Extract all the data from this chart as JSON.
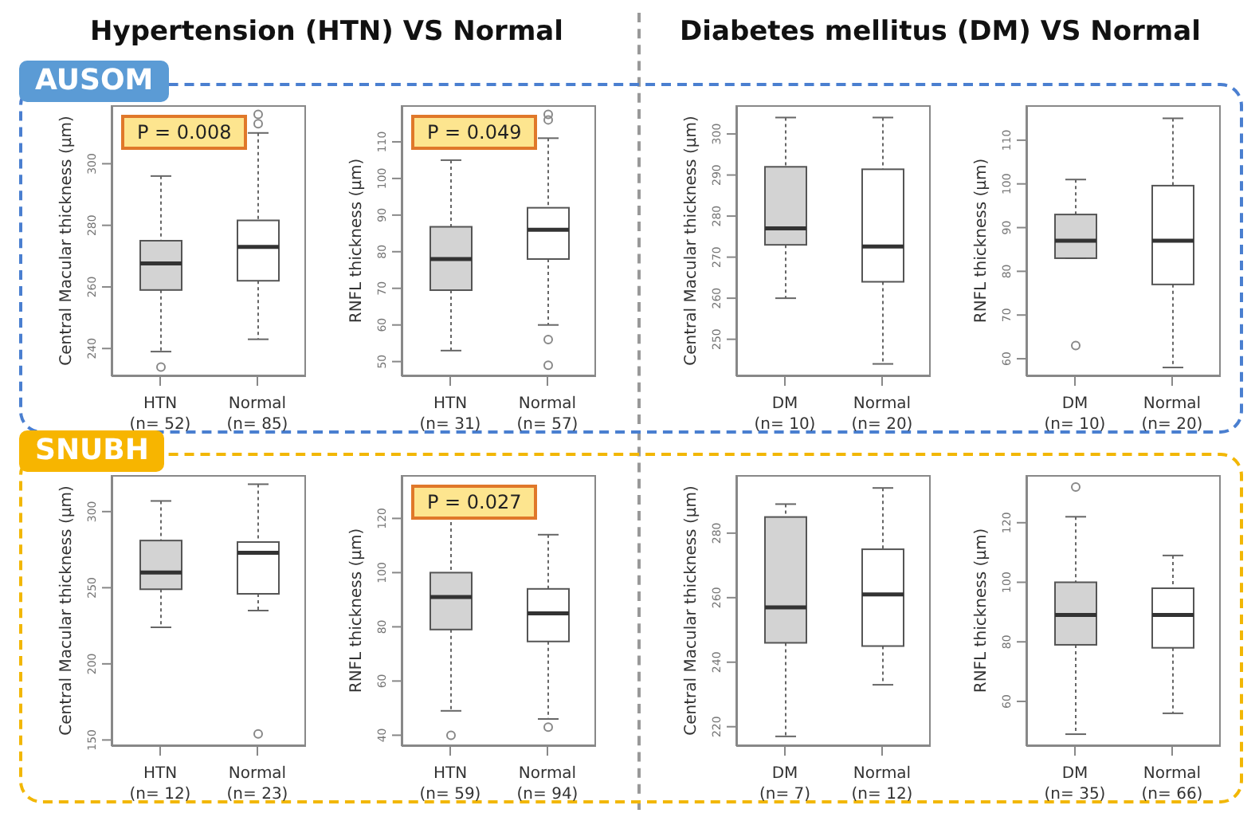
{
  "chart_data": [
    {
      "type": "box",
      "title": "Hypertension (HTN) VS Normal",
      "subtitle": "AUSOM",
      "ylabel": "Central Macular thickness (μm)",
      "categories": [
        "HTN\n(n= 52)",
        "Normal\n(n= 85)"
      ],
      "colors": [
        "#d3d3d3",
        "#ffffff"
      ],
      "ylim": [
        231,
        319
      ],
      "yticks": [
        240,
        260,
        280,
        300
      ],
      "annotations": [
        "P = 0.008"
      ],
      "boxes": [
        {
          "low": 239,
          "q1": 259,
          "median": 267.6,
          "q3": 275,
          "high": 296,
          "outliers": [
            234
          ]
        },
        {
          "low": 243,
          "q1": 262,
          "median": 273,
          "q3": 281.6,
          "high": 310,
          "outliers": [
            313,
            316
          ]
        }
      ]
    },
    {
      "type": "box",
      "ylabel": "RNFL thickness (μm)",
      "categories": [
        "HTN\n(n= 31)",
        "Normal\n(n= 57)"
      ],
      "colors": [
        "#d3d3d3",
        "#ffffff"
      ],
      "ylim": [
        46,
        120
      ],
      "yticks": [
        50,
        60,
        70,
        80,
        90,
        100,
        110
      ],
      "annotations": [
        "P = 0.049"
      ],
      "boxes": [
        {
          "low": 53,
          "q1": 69.5,
          "median": 78,
          "q3": 86.8,
          "high": 105
        },
        {
          "low": 60,
          "q1": 78,
          "median": 86,
          "q3": 92,
          "high": 111,
          "outliers": [
            116,
            117.5,
            56,
            49
          ]
        }
      ]
    },
    {
      "type": "box",
      "title": "Diabetes mellitus (DM) VS Normal",
      "ylabel": "Central Macular thickness (μm)",
      "categories": [
        "DM\n(n= 10)",
        "Normal\n(n= 20)"
      ],
      "colors": [
        "#d3d3d3",
        "#ffffff"
      ],
      "ylim": [
        241,
        307
      ],
      "yticks": [
        250,
        260,
        270,
        280,
        290,
        300
      ],
      "boxes": [
        {
          "low": 260,
          "q1": 273,
          "median": 277,
          "q3": 292,
          "high": 304
        },
        {
          "low": 244,
          "q1": 264,
          "median": 272.6,
          "q3": 291.4,
          "high": 304
        }
      ]
    },
    {
      "type": "box",
      "ylabel": "RNFL thickness (μm)",
      "categories": [
        "DM\n(n= 10)",
        "Normal\n(n= 20)"
      ],
      "colors": [
        "#d3d3d3",
        "#ffffff"
      ],
      "ylim": [
        56,
        118
      ],
      "yticks": [
        60,
        70,
        80,
        90,
        100,
        110
      ],
      "boxes": [
        {
          "low": 83,
          "q1": 83,
          "median": 87,
          "q3": 93,
          "high": 101,
          "outliers": [
            63
          ]
        },
        {
          "low": 58,
          "q1": 77,
          "median": 87,
          "q3": 99.6,
          "high": 115
        }
      ]
    },
    {
      "type": "box",
      "subtitle": "SNUBH",
      "ylabel": "Central Macular thickness (μm)",
      "categories": [
        "HTN\n(n= 12)",
        "Normal\n(n= 23)"
      ],
      "colors": [
        "#d3d3d3",
        "#ffffff"
      ],
      "ylim": [
        146,
        324
      ],
      "yticks": [
        150,
        200,
        250,
        300
      ],
      "boxes": [
        {
          "low": 224,
          "q1": 249,
          "median": 260,
          "q3": 281,
          "high": 307
        },
        {
          "low": 235,
          "q1": 246,
          "median": 273,
          "q3": 280,
          "high": 318,
          "outliers": [
            154
          ]
        }
      ]
    },
    {
      "type": "box",
      "ylabel": "RNFL thickness (μm)",
      "categories": [
        "HTN\n(n= 59)",
        "Normal\n(n= 94)"
      ],
      "colors": [
        "#d3d3d3",
        "#ffffff"
      ],
      "ylim": [
        36,
        136
      ],
      "yticks": [
        40,
        60,
        80,
        100,
        120
      ],
      "annotations": [
        "P = 0.027"
      ],
      "boxes": [
        {
          "low": 49,
          "q1": 79,
          "median": 91,
          "q3": 100,
          "high": 121,
          "outliers": [
            40
          ]
        },
        {
          "low": 46,
          "q1": 74.6,
          "median": 85,
          "q3": 94,
          "high": 114,
          "outliers": [
            43
          ]
        }
      ]
    },
    {
      "type": "box",
      "ylabel": "Central Macular thickness (μm)",
      "categories": [
        "DM\n(n= 7)",
        "Normal\n(n= 12)"
      ],
      "colors": [
        "#d3d3d3",
        "#ffffff"
      ],
      "ylim": [
        214,
        298
      ],
      "yticks": [
        220,
        240,
        260,
        280
      ],
      "boxes": [
        {
          "low": 217,
          "q1": 246,
          "median": 257,
          "q3": 285,
          "high": 289
        },
        {
          "low": 233,
          "q1": 245,
          "median": 261,
          "q3": 275,
          "high": 294
        }
      ]
    },
    {
      "type": "box",
      "ylabel": "RNFL thickness (μm)",
      "categories": [
        "DM\n(n= 35)",
        "Normal\n(n= 66)"
      ],
      "colors": [
        "#d3d3d3",
        "#ffffff"
      ],
      "ylim": [
        45,
        136
      ],
      "yticks": [
        60,
        80,
        100,
        120
      ],
      "boxes": [
        {
          "low": 49,
          "q1": 79,
          "median": 89,
          "q3": 100,
          "high": 122,
          "outliers": [
            132
          ]
        },
        {
          "low": 56,
          "q1": 78,
          "median": 89,
          "q3": 98,
          "high": 109
        }
      ]
    }
  ]
}
